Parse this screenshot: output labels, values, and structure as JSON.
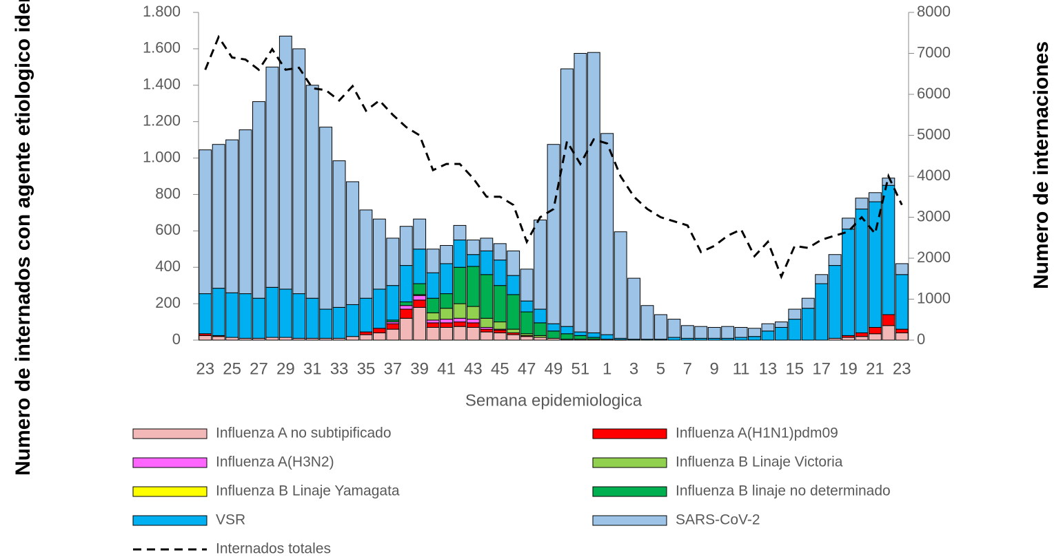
{
  "chart_data": {
    "type": "bar",
    "stacked": true,
    "y_label": "Numero de internados con agente etiologico identificado",
    "y2_label": "Numero de internaciones",
    "x_label": "Semana epidemiologica",
    "categories": [
      "23",
      null,
      "25",
      null,
      "27",
      null,
      "29",
      null,
      "31",
      null,
      "33",
      null,
      "35",
      null,
      "37",
      null,
      "39",
      null,
      "41",
      null,
      "43",
      null,
      "45",
      null,
      "47",
      null,
      "49",
      null,
      "51",
      null,
      "1",
      null,
      "3",
      null,
      "5",
      null,
      "7",
      null,
      "9",
      null,
      "11",
      null,
      "13",
      null,
      "15",
      null,
      "17",
      null,
      "19",
      null,
      "21",
      null,
      "23"
    ],
    "ylim": [
      0,
      1800
    ],
    "yticks": [
      0,
      200,
      400,
      600,
      800,
      {
        "value": 1000,
        "label": "1.000"
      },
      {
        "value": 1200,
        "label": "1.200"
      },
      {
        "value": 1400,
        "label": "1.400"
      },
      {
        "value": 1600,
        "label": "1.600"
      },
      {
        "value": 1800,
        "label": "1.800"
      }
    ],
    "y2lim": [
      0,
      8000
    ],
    "y2ticks": [
      0,
      1000,
      2000,
      3000,
      4000,
      5000,
      6000,
      7000,
      8000
    ],
    "grid": false,
    "series": [
      {
        "name": "Influenza A no subtipificado",
        "color": "#f2b8b8",
        "values": [
          25,
          20,
          15,
          10,
          10,
          15,
          15,
          10,
          10,
          10,
          10,
          20,
          30,
          40,
          60,
          120,
          180,
          70,
          70,
          75,
          70,
          45,
          40,
          30,
          20,
          15,
          10,
          5,
          5,
          5,
          5,
          2,
          0,
          0,
          0,
          0,
          0,
          0,
          0,
          0,
          0,
          0,
          0,
          0,
          0,
          0,
          0,
          10,
          15,
          20,
          35,
          80,
          40
        ]
      },
      {
        "name": "Influenza A(H1N1)pdm09",
        "color": "#ff0000",
        "values": [
          10,
          5,
          0,
          0,
          0,
          0,
          0,
          0,
          0,
          0,
          0,
          0,
          15,
          25,
          30,
          50,
          40,
          25,
          25,
          25,
          25,
          15,
          15,
          10,
          5,
          0,
          0,
          0,
          0,
          0,
          0,
          0,
          0,
          0,
          0,
          0,
          0,
          0,
          0,
          0,
          0,
          0,
          0,
          0,
          0,
          0,
          0,
          0,
          10,
          20,
          35,
          60,
          20
        ]
      },
      {
        "name": "Influenza A(H3N2)",
        "color": "#ff66ff",
        "values": [
          0,
          0,
          0,
          0,
          0,
          0,
          0,
          0,
          0,
          0,
          0,
          0,
          0,
          0,
          10,
          20,
          25,
          15,
          20,
          20,
          20,
          10,
          5,
          0,
          0,
          0,
          0,
          0,
          0,
          0,
          0,
          0,
          0,
          0,
          0,
          0,
          0,
          0,
          0,
          0,
          0,
          0,
          0,
          0,
          0,
          0,
          0,
          0,
          0,
          0,
          0,
          0,
          0
        ]
      },
      {
        "name": "Influenza B Linaje Victoria",
        "color": "#92d050",
        "values": [
          0,
          0,
          0,
          0,
          0,
          0,
          0,
          0,
          0,
          0,
          0,
          0,
          0,
          0,
          0,
          0,
          5,
          40,
          60,
          80,
          70,
          50,
          40,
          20,
          10,
          10,
          0,
          0,
          0,
          0,
          0,
          0,
          0,
          0,
          0,
          0,
          0,
          0,
          0,
          0,
          0,
          0,
          0,
          0,
          0,
          0,
          0,
          0,
          0,
          0,
          0,
          0,
          0
        ]
      },
      {
        "name": "Influenza B Linaje Yamagata",
        "color": "#ffff00",
        "values": [
          0,
          0,
          0,
          0,
          0,
          0,
          0,
          0,
          0,
          0,
          0,
          0,
          0,
          0,
          0,
          0,
          0,
          0,
          0,
          0,
          0,
          0,
          0,
          0,
          0,
          0,
          0,
          0,
          0,
          0,
          0,
          0,
          0,
          0,
          0,
          0,
          0,
          0,
          0,
          0,
          0,
          0,
          0,
          0,
          0,
          0,
          0,
          0,
          0,
          0,
          0,
          0,
          0
        ]
      },
      {
        "name": "Influenza B linaje no determinado",
        "color": "#00b050",
        "values": [
          0,
          0,
          0,
          0,
          0,
          0,
          0,
          0,
          0,
          0,
          0,
          0,
          0,
          0,
          10,
          20,
          60,
          80,
          80,
          200,
          220,
          240,
          200,
          190,
          120,
          70,
          40,
          30,
          20,
          10,
          0,
          0,
          0,
          0,
          0,
          0,
          0,
          0,
          0,
          0,
          0,
          0,
          0,
          0,
          0,
          0,
          0,
          0,
          0,
          0,
          0,
          0,
          0
        ]
      },
      {
        "name": "VSR",
        "color": "#00b0f0",
        "values": [
          220,
          260,
          245,
          245,
          220,
          275,
          265,
          245,
          220,
          160,
          170,
          175,
          185,
          215,
          190,
          200,
          190,
          140,
          165,
          150,
          65,
          130,
          140,
          105,
          60,
          75,
          40,
          40,
          20,
          25,
          25,
          8,
          5,
          5,
          5,
          15,
          10,
          10,
          10,
          10,
          15,
          20,
          50,
          70,
          115,
          175,
          310,
          400,
          585,
          680,
          690,
          710,
          300
        ]
      },
      {
        "name": "SARS-CoV-2",
        "color": "#9dc3e6",
        "values": [
          790,
          790,
          840,
          900,
          1080,
          1210,
          1390,
          1345,
          1170,
          1000,
          805,
          675,
          485,
          385,
          260,
          215,
          165,
          130,
          100,
          80,
          80,
          70,
          90,
          135,
          175,
          490,
          985,
          1415,
          1530,
          1540,
          1105,
          585,
          335,
          185,
          135,
          100,
          70,
          65,
          60,
          65,
          55,
          45,
          40,
          30,
          55,
          55,
          50,
          60,
          60,
          60,
          50,
          40,
          60
        ]
      },
      {
        "name": "Internados totales",
        "type": "line",
        "axis": "y2",
        "color": "#000000",
        "dashed": true,
        "values": [
          6600,
          7400,
          6900,
          6850,
          6600,
          7100,
          6600,
          6650,
          6150,
          6100,
          5850,
          6200,
          5600,
          5850,
          5500,
          5200,
          5000,
          4150,
          4300,
          4300,
          3950,
          3500,
          3500,
          3300,
          2400,
          3000,
          3200,
          4850,
          4300,
          4900,
          4800,
          4000,
          3500,
          3200,
          3000,
          2900,
          2800,
          2150,
          2300,
          2550,
          2700,
          2050,
          2400,
          1550,
          2300,
          2250,
          2450,
          2550,
          2650,
          3000,
          2600,
          4000,
          3300
        ]
      }
    ]
  }
}
